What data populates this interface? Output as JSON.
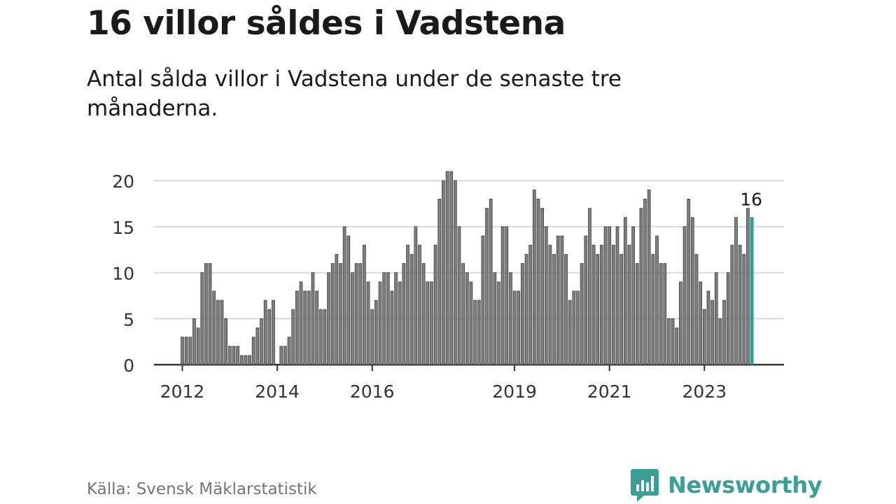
{
  "title": "16 villor såldes i Vadstena",
  "subtitle": "Antal sålda villor i Vadstena under de senaste tre månaderna.",
  "source": "Källa: Svensk Mäklarstatistik",
  "brand": {
    "name": "Newsworthy",
    "icon": "bar-chart-speech-bubble-icon"
  },
  "colors": {
    "bar": "#808080",
    "highlight": "#2aa6a0",
    "grid": "#d9d9d9",
    "axis": "#333333",
    "brand": "#3b9f95"
  },
  "chart_data": {
    "type": "bar",
    "x_start": "2012-01",
    "interval": "month",
    "values": [
      3,
      3,
      3,
      5,
      4,
      10,
      11,
      11,
      8,
      7,
      7,
      5,
      2,
      2,
      2,
      1,
      1,
      1,
      3,
      4,
      5,
      7,
      6,
      7,
      0,
      2,
      2,
      3,
      6,
      8,
      9,
      8,
      8,
      10,
      8,
      6,
      6,
      10,
      11,
      12,
      11,
      15,
      14,
      10,
      11,
      11,
      13,
      9,
      6,
      7,
      9,
      10,
      10,
      8,
      10,
      9,
      11,
      13,
      12,
      15,
      13,
      11,
      9,
      9,
      13,
      18,
      20,
      21,
      21,
      20,
      15,
      11,
      10,
      9,
      7,
      7,
      14,
      17,
      18,
      10,
      9,
      15,
      15,
      10,
      8,
      8,
      11,
      12,
      13,
      19,
      18,
      17,
      15,
      13,
      12,
      14,
      14,
      12,
      7,
      8,
      8,
      11,
      14,
      17,
      13,
      12,
      13,
      15,
      15,
      13,
      15,
      12,
      16,
      13,
      15,
      11,
      17,
      18,
      19,
      12,
      14,
      11,
      11,
      5,
      5,
      4,
      9,
      15,
      18,
      16,
      12,
      9,
      6,
      8,
      7,
      10,
      5,
      7,
      10,
      13,
      16,
      13,
      12,
      17,
      16
    ],
    "highlight": {
      "index": 144,
      "label": "16"
    },
    "y_ticks": [
      0,
      5,
      10,
      15,
      20
    ],
    "ylim": [
      0,
      21
    ],
    "x_tick_labels": [
      "2012",
      "2014",
      "2016",
      "2019",
      "2021",
      "2023"
    ],
    "grid": true,
    "legend": "none"
  }
}
